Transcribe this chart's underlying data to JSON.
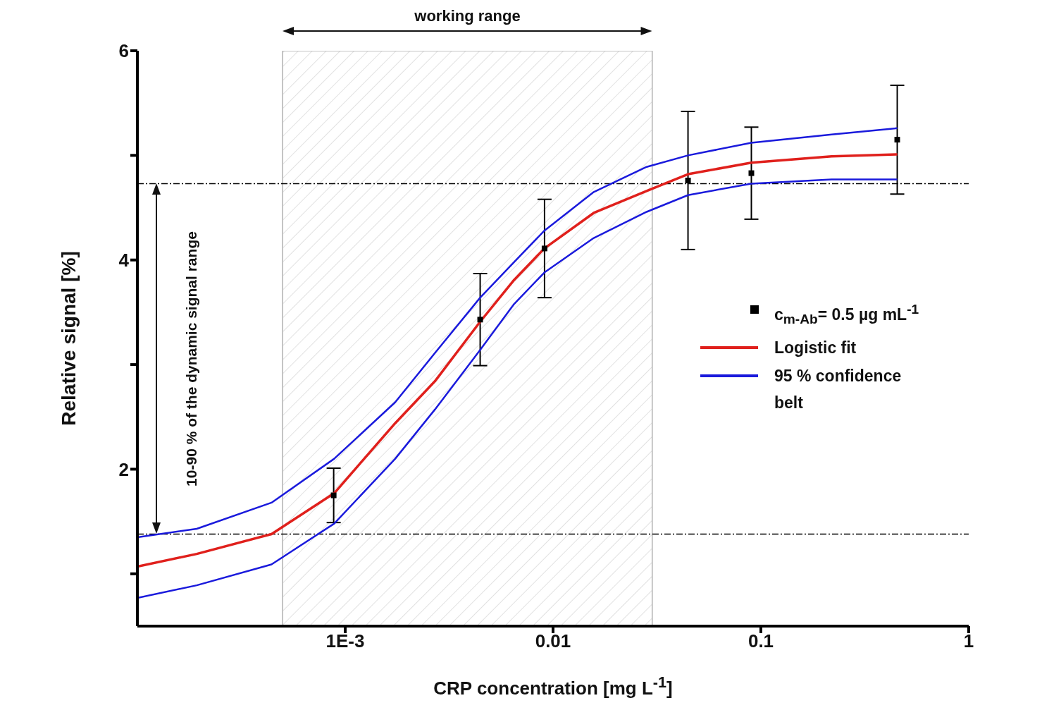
{
  "chart_data": {
    "type": "line",
    "xlabel": "CRP concentration [mg L$^{-1}$]",
    "ylabel": "Relative signal [%]",
    "log": "x",
    "xlim": [
      0.0001,
      1
    ],
    "xticks": [
      {
        "value": 0.001,
        "label": "1E-3"
      },
      0.01,
      0.1,
      1
    ],
    "ylim": [
      0.5,
      6
    ],
    "yticks": [
      {
        "value": 1,
        "label": null
      },
      2,
      {
        "value": 3,
        "label": null
      },
      4,
      {
        "value": 5,
        "label": null
      },
      6
    ],
    "legend": "right",
    "line_style": "solid",
    "series": [
      {
        "name": "c$_{m-Ab}$= 0.5 µg mL$^{-1}$",
        "type": "scatter",
        "marker": "square",
        "color": "#000000",
        "x": [
          0.00088,
          0.00446,
          0.0091,
          0.0446,
          0.09,
          0.453
        ],
        "values": [
          1.75,
          3.43,
          4.11,
          4.76,
          4.83,
          5.15
        ],
        "errors": [
          0.26,
          0.44,
          0.47,
          0.66,
          0.44,
          0.52
        ]
      },
      {
        "name": "Logistic fit",
        "color": "#e0201c",
        "x": [
          0.0001,
          0.000193,
          0.000442,
          0.000885,
          0.00174,
          0.0027,
          0.00446,
          0.0065,
          0.00908,
          0.0157,
          0.0282,
          0.0446,
          0.0899,
          0.219,
          0.453
        ],
        "values": [
          1.07,
          1.19,
          1.38,
          1.77,
          2.44,
          2.84,
          3.41,
          3.81,
          4.11,
          4.45,
          4.66,
          4.82,
          4.93,
          4.99,
          5.01
        ]
      },
      {
        "name": "95 % confidence belt",
        "color": "#1a1adc",
        "x": [
          0.0001,
          0.000193,
          0.000442,
          0.000885,
          0.00174,
          0.0027,
          0.00446,
          0.0065,
          0.00908,
          0.0157,
          0.0282,
          0.0446,
          0.0899,
          0.219,
          0.453
        ],
        "values": [
          1.35,
          1.43,
          1.68,
          2.1,
          2.64,
          3.11,
          3.64,
          3.98,
          4.28,
          4.65,
          4.89,
          5.0,
          5.12,
          5.2,
          5.26
        ]
      },
      {
        "color": "#1a1adc",
        "x": [
          0.0001,
          0.000193,
          0.000442,
          0.000885,
          0.00174,
          0.0027,
          0.00446,
          0.0065,
          0.00908,
          0.0157,
          0.0282,
          0.0446,
          0.0899,
          0.219,
          0.453
        ],
        "values": [
          0.77,
          0.89,
          1.09,
          1.48,
          2.1,
          2.57,
          3.14,
          3.58,
          3.88,
          4.21,
          4.46,
          4.62,
          4.73,
          4.77,
          4.77
        ]
      }
    ],
    "ref_lines": [
      {
        "axis": "y",
        "value": 4.73,
        "color": "#000000",
        "line_style": "dashed"
      },
      {
        "axis": "y",
        "value": 1.38,
        "color": "#000000",
        "line_style": "dashed"
      }
    ],
    "bands": [
      {
        "axis": "x",
        "from": 0.0005,
        "to": 0.03,
        "label": "working range",
        "color": "#b0b0b0"
      }
    ],
    "annotations": [
      "10-90 % of the dynamic signal range"
    ]
  }
}
